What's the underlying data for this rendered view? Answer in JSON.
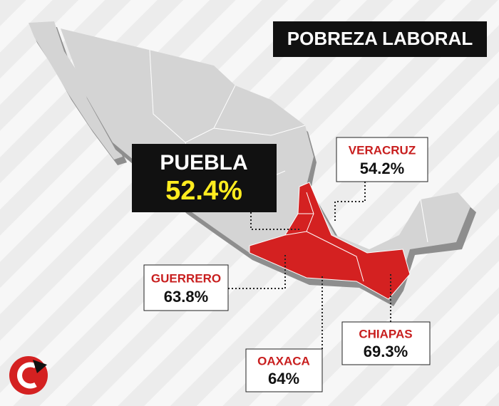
{
  "title": "POBREZA LABORAL",
  "regions": [
    {
      "name": "PUEBLA",
      "value": "52.4%"
    },
    {
      "name": "VERACRUZ",
      "value": "54.2%"
    },
    {
      "name": "GUERRERO",
      "value": "63.8%"
    },
    {
      "name": "OAXACA",
      "value": "64%"
    },
    {
      "name": "CHIAPAS",
      "value": "69.3%"
    }
  ]
}
